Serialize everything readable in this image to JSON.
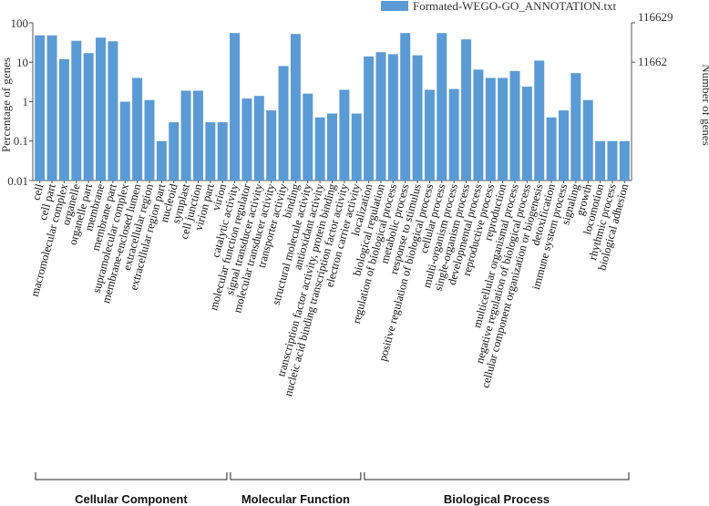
{
  "chart_data": {
    "type": "bar",
    "legend": "Formated-WEGO-GO_ANNOTATION.txt",
    "ylabel": "Percentage of genes",
    "y2label": "Number of genes",
    "yscale": "log",
    "ylim": [
      0.01,
      100
    ],
    "y_ticks": [
      "100",
      "10",
      "1",
      "0.1",
      "0.01"
    ],
    "y2_ticks": [
      "116629",
      "11662"
    ],
    "bar_color": "#5b9bd5",
    "categories": [
      "cell",
      "cell part",
      "macromolecular complex",
      "organelle",
      "organelle part",
      "membrane",
      "membrane part",
      "supramolecular complex",
      "membrane-enclosed lumen",
      "extracellular region",
      "extracellular region part",
      "nucleoid",
      "symplast",
      "cell junction",
      "virion part",
      "virion",
      "catalytic activity",
      "molecular function regulator",
      "signal transducer activity",
      "molecular transducer activity",
      "transporter activity",
      "binding",
      "structural molecule activity",
      "antioxidant activity",
      "transcription factor activity, protein binding",
      "nucleic acid binding transcription factor activity",
      "electron carrier activity",
      "localization",
      "biological regulation",
      "regulation of biological process",
      "metabolic process",
      "response to stimulus",
      "positive regulation of biological process",
      "cellular process",
      "multi-organism process",
      "single-organism process",
      "developmental process",
      "reproductive process",
      "reproduction",
      "multicellular organismal process",
      "negative regulation of biological process",
      "cellular component organization or biogenesis",
      "detoxification",
      "immune system process",
      "signaling",
      "growth",
      "locomotion",
      "rhythmic process",
      "biological adhesion"
    ],
    "values": [
      48,
      48,
      12,
      35,
      17,
      42,
      34,
      1,
      4,
      1.1,
      0.1,
      0.3,
      1.9,
      1.9,
      0.3,
      0.3,
      55,
      1.2,
      1.4,
      0.6,
      8,
      52,
      1.6,
      0.4,
      0.5,
      2,
      0.5,
      14,
      18,
      16,
      55,
      15,
      2,
      55,
      2.1,
      38,
      6.5,
      4,
      4,
      6,
      2.4,
      11,
      0.4,
      0.6,
      5.3,
      1.1,
      0.1,
      0.1,
      0.1
    ],
    "groups": [
      {
        "name": "Cellular Component",
        "start": 0,
        "end": 15
      },
      {
        "name": "Molecular Function",
        "start": 16,
        "end": 26
      },
      {
        "name": "Biological Process",
        "start": 27,
        "end": 48
      }
    ]
  }
}
